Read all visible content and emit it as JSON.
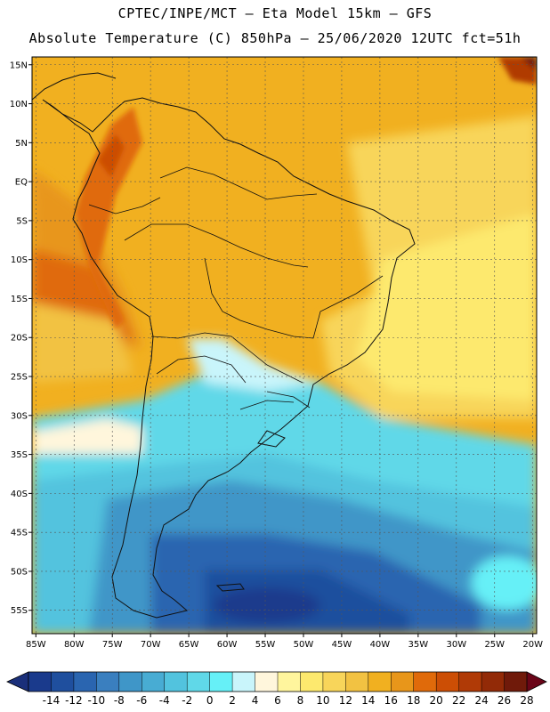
{
  "header": {
    "line1": "CPTEC/INPE/MCT –  Eta Model 15km – GFS",
    "line2": "Absolute Temperature (C) 850hPa – 25/06/2020 12UTC fct=51h"
  },
  "map": {
    "lat_labels": [
      "15N",
      "10N",
      "5N",
      "EQ",
      "5S",
      "10S",
      "15S",
      "20S",
      "25S",
      "30S",
      "35S",
      "40S",
      "45S",
      "50S",
      "55S"
    ],
    "lat_values": [
      15,
      10,
      5,
      0,
      -5,
      -10,
      -15,
      -20,
      -25,
      -30,
      -35,
      -40,
      -45,
      -50,
      -55
    ],
    "lon_labels": [
      "85W",
      "80W",
      "75W",
      "70W",
      "65W",
      "60W",
      "55W",
      "50W",
      "45W",
      "40W",
      "35W",
      "30W",
      "25W",
      "20W"
    ],
    "lon_values": [
      -85,
      -80,
      -75,
      -70,
      -65,
      -60,
      -55,
      -50,
      -45,
      -40,
      -35,
      -30,
      -25,
      -20
    ],
    "extent": {
      "lon_min": -85.5,
      "lon_max": -19.5,
      "lat_min": -58,
      "lat_max": 16
    }
  },
  "colorbar": {
    "labels": [
      "-14",
      "-12",
      "-10",
      "-8",
      "-6",
      "-4",
      "-2",
      "0",
      "2",
      "4",
      "6",
      "8",
      "10",
      "12",
      "14",
      "16",
      "18",
      "20",
      "22",
      "24",
      "26",
      "28"
    ],
    "colors": [
      "#1a3a8c",
      "#1f4f9e",
      "#2a65b0",
      "#3a7fbf",
      "#3f96c8",
      "#48acd3",
      "#52c3de",
      "#60d8e8",
      "#66f0f7",
      "#c9f5fb",
      "#fff6dc",
      "#fff59d",
      "#fde96e",
      "#f8d55a",
      "#f2c242",
      "#f1b020",
      "#e8961a",
      "#e06a0a",
      "#cc4e05",
      "#b03a06",
      "#922a07",
      "#701a0a"
    ],
    "under_color": "#1a2f7a",
    "over_color": "#6a0518"
  }
}
